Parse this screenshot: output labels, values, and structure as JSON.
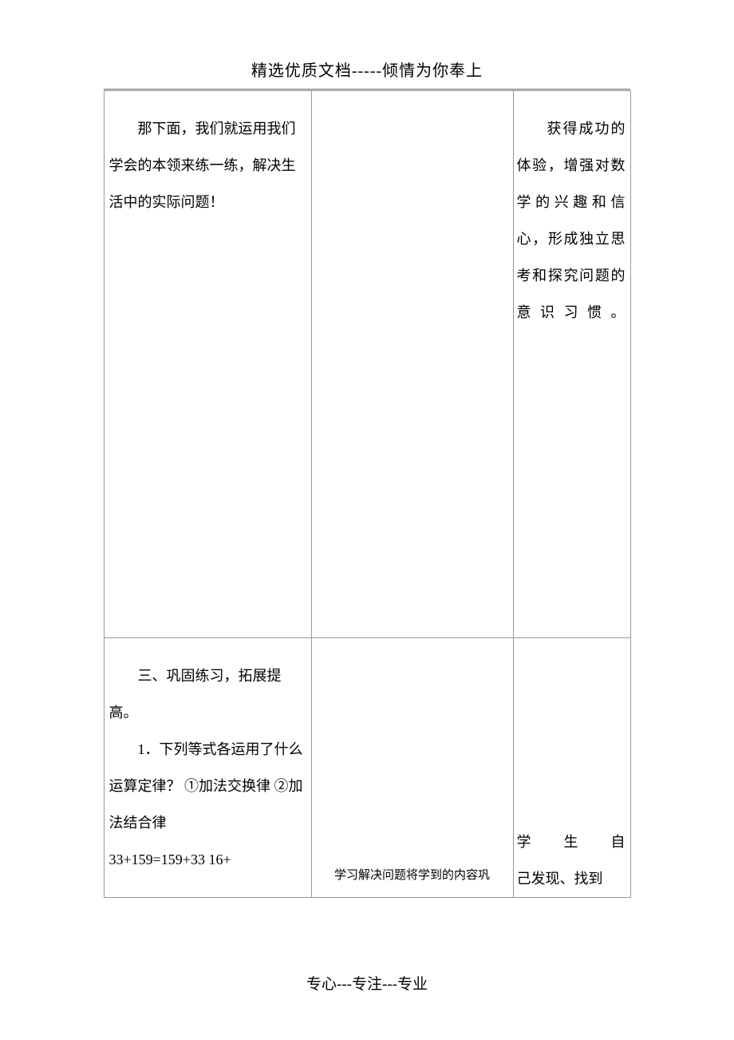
{
  "header": {
    "text": "精选优质文档-----倾情为你奉上"
  },
  "table": {
    "row1": {
      "col1": {
        "p1": "那下面，我们就运用我们学会的本领来练一练，解决生活中的实际问题！"
      },
      "col3": {
        "text": "获得成功的体验，增强对数学的兴趣和信心，形成独立思考和探究问题的意识习惯。"
      }
    },
    "row2": {
      "col1": {
        "p1": "三、巩固练习，拓展提高。",
        "p2": "1．下列等式各运用了什么运算定律？  ①加法交换律 ②加法结合律",
        "p3": "33+159=159+33 16+"
      },
      "col2": {
        "text": "学习解决问题将学到的内容巩"
      },
      "col3": {
        "line1": "学生自",
        "line2": "己发现、找到"
      }
    }
  },
  "footer": {
    "text": "专心---专注---专业"
  },
  "colors": {
    "text": "#000000",
    "border": "#999999",
    "background": "#ffffff"
  }
}
